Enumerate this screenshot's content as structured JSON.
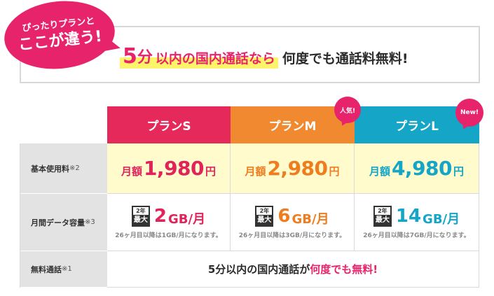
{
  "banner": {
    "bubble_line1": "ぴったりプランと",
    "bubble_line2": "ここが違う!",
    "headline_big": "5",
    "headline_bun": "分",
    "headline_pink": "以内の国内通話なら",
    "headline_dark": "何度でも通話料無料!"
  },
  "plans": [
    {
      "name": "プランS",
      "getsugaku": "月額",
      "price": "1,980",
      "yen": "円",
      "max_top": "2年",
      "max_bot": "最大",
      "gb": "2",
      "gb_unit": "GB/月",
      "note": "26ヶ月目以降は1GB/月になります。",
      "color": "#e52a5b"
    },
    {
      "name": "プランM",
      "getsugaku": "月額",
      "price": "2,980",
      "yen": "円",
      "max_top": "2年",
      "max_bot": "最大",
      "gb": "6",
      "gb_unit": "GB/月",
      "note": "26ヶ月目以降は3GB/月になります。",
      "color": "#f08930"
    },
    {
      "name": "プランL",
      "getsugaku": "月額",
      "price": "4,980",
      "yen": "円",
      "max_top": "2年",
      "max_bot": "最大",
      "gb": "14",
      "gb_unit": "GB/月",
      "note": "26ヶ月目以降は7GB/月になります。",
      "color": "#14a5c7"
    }
  ],
  "badges": {
    "popular": "人気!",
    "new": "New!"
  },
  "rows": {
    "basic_fee": {
      "label": "基本使用料",
      "note": "※2"
    },
    "data": {
      "label": "月間データ容量",
      "note": "※3"
    },
    "free_call": {
      "label": "無料通話",
      "note": "※1"
    }
  },
  "free_call": {
    "part1": "5分以内の国内通話が",
    "part2": "何度でも無料!"
  }
}
